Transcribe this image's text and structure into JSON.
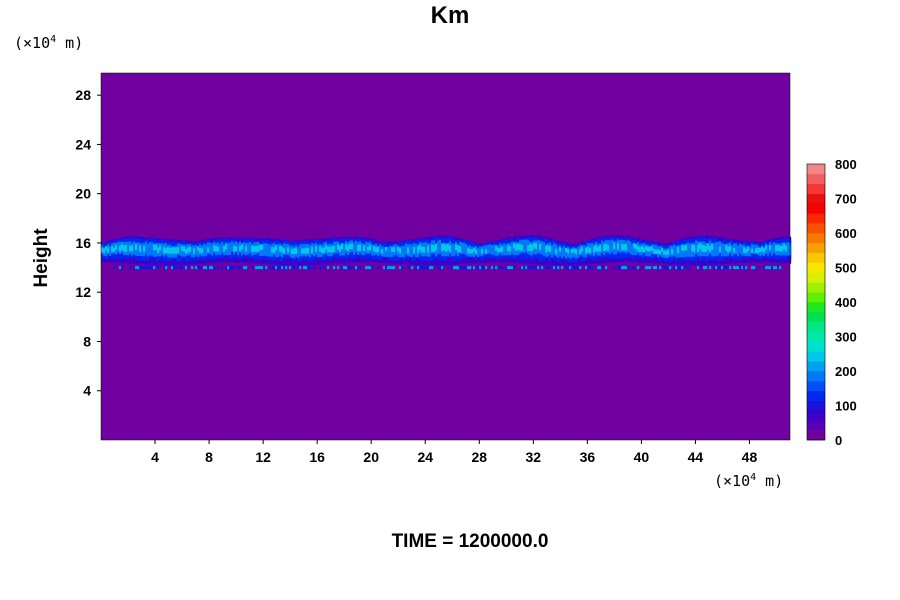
{
  "chart_data": {
    "type": "heatmap",
    "title": "Km",
    "ylabel": "Height",
    "y_unit": {
      "prefix": "(×10",
      "exp": "4",
      "suffix": " m)"
    },
    "x_unit": {
      "prefix": "(×10",
      "exp": "4",
      "suffix": " m)"
    },
    "xlim": [
      0,
      51
    ],
    "ylim": [
      0,
      29.8
    ],
    "x_ticks": [
      "4",
      "8",
      "12",
      "16",
      "20",
      "24",
      "28",
      "32",
      "36",
      "40",
      "44",
      "48"
    ],
    "y_ticks": [
      "4",
      "8",
      "12",
      "16",
      "20",
      "24",
      "28"
    ],
    "colorbar": {
      "levels": [
        "0",
        "100",
        "200",
        "300",
        "400",
        "500",
        "600",
        "700",
        "800"
      ],
      "colors": [
        "#7000a0",
        "#5a00b4",
        "#3c00c8",
        "#1c10dc",
        "#0028f0",
        "#0050f8",
        "#0078f8",
        "#00a0f0",
        "#00c8e8",
        "#00e0d0",
        "#00e8a8",
        "#00e880",
        "#00e050",
        "#20e820",
        "#60f000",
        "#a0f000",
        "#d8f000",
        "#f8e800",
        "#f8c800",
        "#f8a000",
        "#f87800",
        "#f85000",
        "#f82800",
        "#f80000",
        "#e81010",
        "#f03838",
        "#f06060",
        "#f08888"
      ]
    },
    "time_label": "TIME = 1200000.0",
    "band": {
      "bottom": 14.3,
      "top": 16.2,
      "lower_filament": 14.0
    }
  }
}
